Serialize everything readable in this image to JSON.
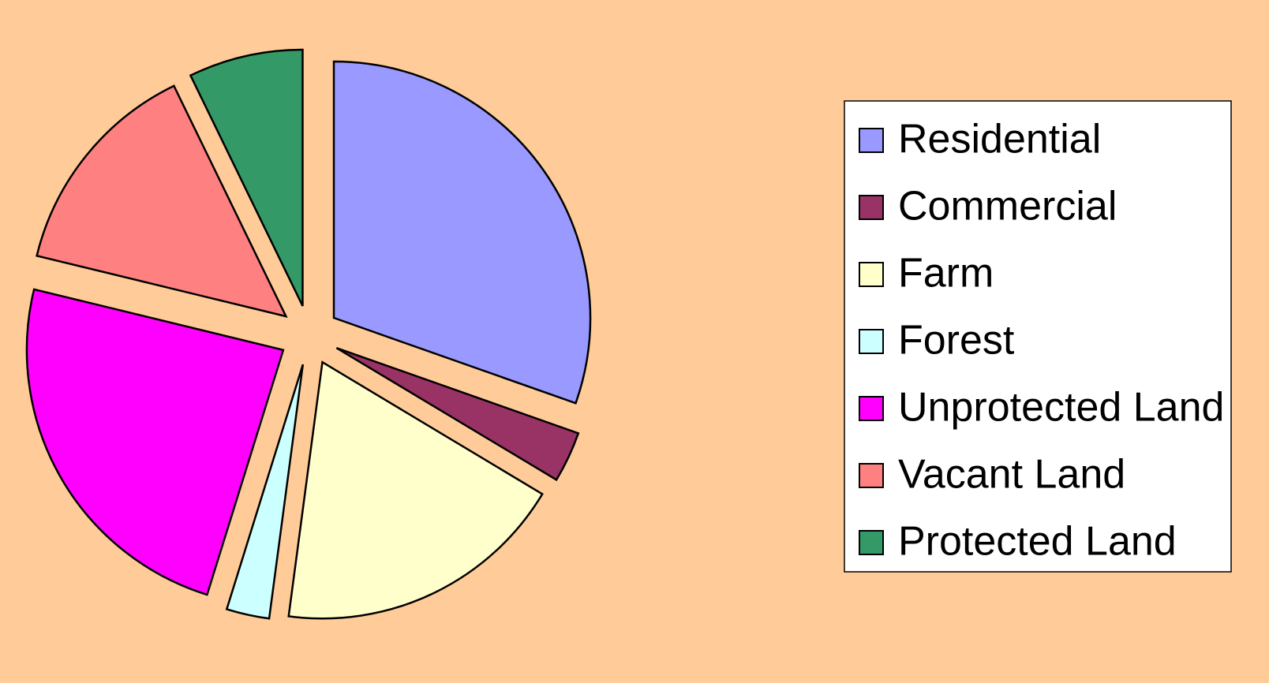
{
  "chart_data": {
    "type": "pie",
    "categories": [
      "Residential",
      "Commercial",
      "Farm",
      "Forest",
      "Unprotected Land",
      "Vacant Land",
      "Protected Land"
    ],
    "values": [
      30.4,
      3.2,
      18.5,
      2.7,
      24,
      14,
      7.2
    ],
    "colors": [
      "#9999ff",
      "#993366",
      "#ffffcc",
      "#ccffff",
      "#ff00ff",
      "#ff8080",
      "#339966"
    ],
    "legend": "right"
  }
}
